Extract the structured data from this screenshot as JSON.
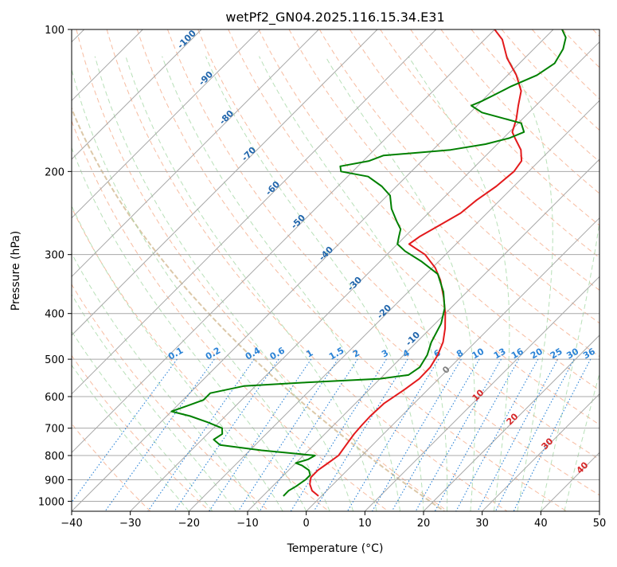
{
  "chart_data": {
    "type": "line",
    "subtype": "skew-t log-p diagram",
    "title": "wetPf2_GN04.2025.116.15.34.E31",
    "xlabel": "Temperature (°C)",
    "ylabel": "Pressure (hPa)",
    "xlim": [
      -40,
      50
    ],
    "ylim": [
      1050,
      100
    ],
    "y_scale": "log",
    "grid": true,
    "x_ticks": [
      -40,
      -30,
      -20,
      -10,
      0,
      10,
      20,
      30,
      40,
      50
    ],
    "x_tick_labels": [
      "−40",
      "−30",
      "−20",
      "−10",
      "0",
      "10",
      "20",
      "30",
      "40",
      "50"
    ],
    "y_ticks": [
      100,
      200,
      300,
      400,
      500,
      600,
      700,
      800,
      900,
      1000
    ],
    "y_tick_labels": [
      "100",
      "200",
      "300",
      "400",
      "500",
      "600",
      "700",
      "800",
      "900",
      "1000"
    ],
    "skew_angle_deg": 45,
    "colors": {
      "temperature": "#e31a1c",
      "dewpoint": "#008000",
      "isotherm": "#a8a8a8",
      "dry_adiabat": "#f4a582",
      "moist_adiabat": "#a6d8a6",
      "mixing_ratio": "#2b83d6",
      "isotherm_label": "#2166ac",
      "zero_label": "#808080",
      "moist_label": "#d62728",
      "tan_curve": "#dcc8a8"
    },
    "series": [
      {
        "key": "temperature",
        "points": [
          [
            975,
            -0.5
          ],
          [
            950,
            -2.5
          ],
          [
            920,
            -4.0
          ],
          [
            890,
            -5.0
          ],
          [
            860,
            -5.0
          ],
          [
            830,
            -4.5
          ],
          [
            800,
            -4.0
          ],
          [
            760,
            -4.5
          ],
          [
            720,
            -5.0
          ],
          [
            690,
            -5.2
          ],
          [
            660,
            -5.3
          ],
          [
            620,
            -5.1
          ],
          [
            580,
            -4.0
          ],
          [
            550,
            -3.3
          ],
          [
            520,
            -3.4
          ],
          [
            490,
            -4.2
          ],
          [
            460,
            -5.5
          ],
          [
            430,
            -7.5
          ],
          [
            400,
            -10.0
          ],
          [
            370,
            -13.0
          ],
          [
            340,
            -16.5
          ],
          [
            320,
            -19.5
          ],
          [
            300,
            -23.5
          ],
          [
            290,
            -26.5
          ],
          [
            285,
            -28.0
          ],
          [
            275,
            -27.5
          ],
          [
            260,
            -26.0
          ],
          [
            245,
            -24.5
          ],
          [
            230,
            -24.0
          ],
          [
            215,
            -23.0
          ],
          [
            200,
            -22.5
          ],
          [
            190,
            -23.0
          ],
          [
            180,
            -25.0
          ],
          [
            170,
            -28.0
          ],
          [
            165,
            -29.5
          ],
          [
            155,
            -31.0
          ],
          [
            145,
            -33.0
          ],
          [
            135,
            -35.0
          ],
          [
            125,
            -38.5
          ],
          [
            115,
            -43.0
          ],
          [
            105,
            -47.0
          ],
          [
            100,
            -50.0
          ]
        ]
      },
      {
        "key": "dewpoint",
        "points": [
          [
            975,
            -6.5
          ],
          [
            950,
            -6.5
          ],
          [
            930,
            -6.0
          ],
          [
            900,
            -5.5
          ],
          [
            880,
            -5.5
          ],
          [
            860,
            -6.5
          ],
          [
            840,
            -8.5
          ],
          [
            830,
            -10.0
          ],
          [
            815,
            -8.5
          ],
          [
            800,
            -8.0
          ],
          [
            780,
            -18.0
          ],
          [
            760,
            -26.0
          ],
          [
            740,
            -28.0
          ],
          [
            720,
            -27.5
          ],
          [
            700,
            -28.5
          ],
          [
            680,
            -32.0
          ],
          [
            660,
            -36.0
          ],
          [
            645,
            -40.0
          ],
          [
            630,
            -38.5
          ],
          [
            610,
            -36.5
          ],
          [
            590,
            -36.5
          ],
          [
            570,
            -32.0
          ],
          [
            560,
            -22.0
          ],
          [
            550,
            -10.0
          ],
          [
            540,
            -5.8
          ],
          [
            520,
            -5.2
          ],
          [
            490,
            -6.0
          ],
          [
            460,
            -7.5
          ],
          [
            420,
            -9.0
          ],
          [
            390,
            -11.0
          ],
          [
            360,
            -14.0
          ],
          [
            330,
            -18.0
          ],
          [
            310,
            -23.0
          ],
          [
            295,
            -27.5
          ],
          [
            285,
            -30.0
          ],
          [
            275,
            -31.0
          ],
          [
            265,
            -32.0
          ],
          [
            255,
            -34.0
          ],
          [
            240,
            -37.0
          ],
          [
            225,
            -39.5
          ],
          [
            215,
            -42.5
          ],
          [
            205,
            -46.5
          ],
          [
            200,
            -52.0
          ],
          [
            195,
            -53.0
          ],
          [
            190,
            -49.0
          ],
          [
            185,
            -47.5
          ],
          [
            180,
            -37.0
          ],
          [
            175,
            -32.0
          ],
          [
            170,
            -29.0
          ],
          [
            165,
            -27.5
          ],
          [
            158,
            -29.5
          ],
          [
            150,
            -38.0
          ],
          [
            145,
            -41.0
          ],
          [
            142,
            -40.0
          ],
          [
            138,
            -39.0
          ],
          [
            132,
            -37.5
          ],
          [
            125,
            -35.0
          ],
          [
            118,
            -34.0
          ],
          [
            110,
            -35.0
          ],
          [
            104,
            -36.5
          ],
          [
            100,
            -38.5
          ]
        ]
      }
    ],
    "isotherm_labels": [
      "-100",
      "-90",
      "-80",
      "-70",
      "-60",
      "-50",
      "-40",
      "-30",
      "-20",
      "-10"
    ],
    "zero_label": "0",
    "moist_labels": [
      "10",
      "20",
      "30",
      "40"
    ],
    "mixing_ratio_labels": [
      "0.1",
      "0.2",
      "0.4",
      "0.6",
      "1",
      "1.5",
      "2",
      "3",
      "4",
      "6",
      "8",
      "10",
      "13",
      "16",
      "20",
      "25",
      "30",
      "36"
    ]
  }
}
